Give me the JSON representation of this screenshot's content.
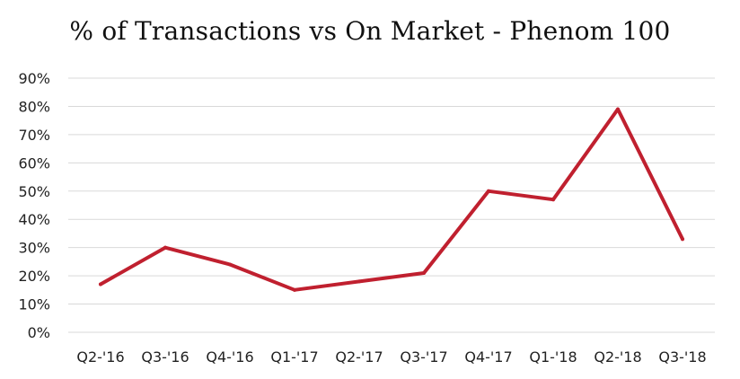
{
  "chart_data": {
    "type": "line",
    "title": "% of Transactions vs On Market - Phenom 100",
    "xlabel": "",
    "ylabel": "",
    "categories": [
      "Q2-'16",
      "Q3-'16",
      "Q4-'16",
      "Q1-'17",
      "Q2-'17",
      "Q3-'17",
      "Q4-'17",
      "Q1-'18",
      "Q2-'18",
      "Q3-'18"
    ],
    "series": [
      {
        "values": [
          17,
          30,
          24,
          15,
          18,
          21,
          50,
          47,
          79,
          33
        ]
      }
    ],
    "ylim": [
      0,
      90
    ],
    "yticks": [
      "0%",
      "10%",
      "20%",
      "30%",
      "40%",
      "50%",
      "60%",
      "70%",
      "80%",
      "90%"
    ],
    "grid": true,
    "legend": "none",
    "line_color": "#c0202f",
    "grid_color": "#d9d9d9"
  }
}
